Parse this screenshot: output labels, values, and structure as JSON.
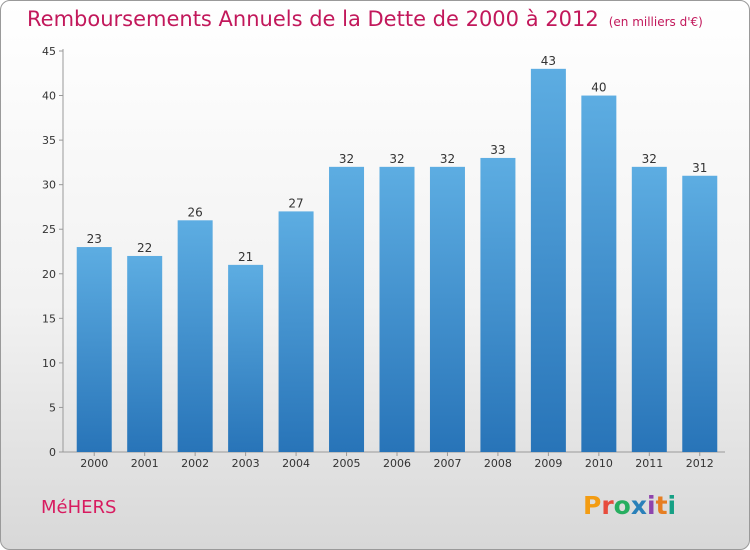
{
  "header": {
    "title": "Remboursements Annuels de la Dette de 2000 à 2012",
    "unit": "(en milliers d'€)"
  },
  "footer": {
    "town": "MéHERS",
    "logo": "Proxiti"
  },
  "colors": {
    "bar_top": "#5dade2",
    "bar_bottom": "#2874b8",
    "title": "#c2185b",
    "logo": [
      "#f39c12",
      "#e74c3c",
      "#27ae60",
      "#2980b9",
      "#8e44ad",
      "#e67e22",
      "#16a085"
    ]
  },
  "chart_data": {
    "type": "bar",
    "categories": [
      "2000",
      "2001",
      "2002",
      "2003",
      "2004",
      "2005",
      "2006",
      "2007",
      "2008",
      "2009",
      "2010",
      "2011",
      "2012"
    ],
    "values": [
      23,
      22,
      26,
      21,
      27,
      32,
      32,
      32,
      33,
      43,
      40,
      32,
      31
    ],
    "ylim": [
      0,
      45
    ],
    "yticks": [
      0,
      5,
      10,
      15,
      20,
      25,
      30,
      35,
      40,
      45
    ],
    "grid": false,
    "legend": "none"
  }
}
